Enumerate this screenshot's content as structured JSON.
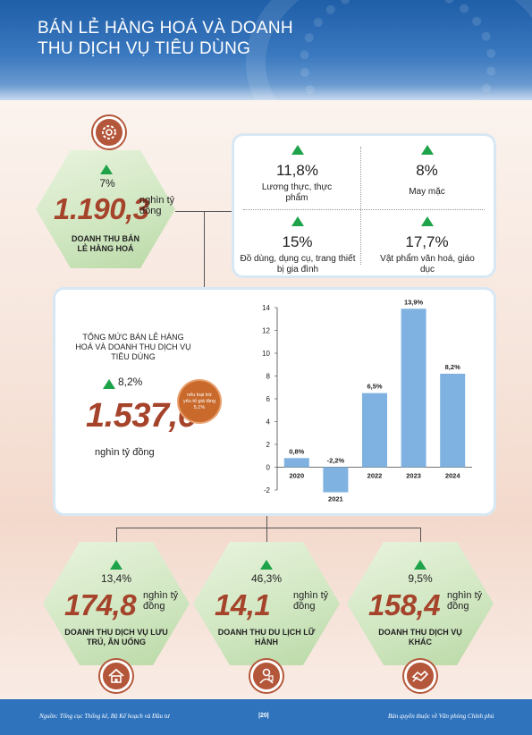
{
  "header": {
    "title": "BÁN LẺ HÀNG HOÁ VÀ DOANH THU DỊCH VỤ TIÊU DÙNG"
  },
  "retail": {
    "pct": "7%",
    "value": "1.190,3",
    "unit": "nghìn tỷ đồng",
    "label": "DOANH THU BÁN LẺ HÀNG HOÁ",
    "icon": "gear-icon"
  },
  "categories": [
    {
      "pct": "11,8%",
      "label": "Lương thực, thực phẩm"
    },
    {
      "pct": "8%",
      "label": "May mặc"
    },
    {
      "pct": "15%",
      "label": "Đồ dùng, dụng cụ, trang thiết bị gia đình"
    },
    {
      "pct": "17,7%",
      "label": "Vật phẩm văn hoá, giáo dục"
    }
  ],
  "total": {
    "title": "TỔNG MỨC BÁN LẺ HÀNG HOÁ VÀ DOANH THU DỊCH VỤ TIÊU DÙNG",
    "pct": "8,2%",
    "value": "1.537,6",
    "unit": "nghìn tỷ đồng",
    "note": "nếu loại trừ yếu tố giá tăng 5,1%"
  },
  "chart_data": {
    "type": "bar",
    "categories": [
      "2020",
      "2021",
      "2022",
      "2023",
      "2024"
    ],
    "values": [
      0.8,
      -2.2,
      6.5,
      13.9,
      8.2
    ],
    "data_labels": [
      "0,8%",
      "-2,2%",
      "6,5%",
      "13,9%",
      "8,2%"
    ],
    "yticks": [
      "14",
      "12",
      "10",
      "8",
      "6",
      "4",
      "2",
      "0",
      "-2"
    ],
    "ylim": [
      -2,
      14
    ],
    "bar_color": "#7fb2e0"
  },
  "services": [
    {
      "pct": "13,4%",
      "value": "174,8",
      "unit": "nghìn tỷ đồng",
      "label": "DOANH THU DỊCH VỤ LƯU TRÚ, ĂN UỐNG",
      "icon": "house-icon"
    },
    {
      "pct": "46,3%",
      "value": "14,1",
      "unit": "nghìn tỷ đồng",
      "label": "DOANH THU DU LỊCH LỮ HÀNH",
      "icon": "tourist-icon"
    },
    {
      "pct": "9,5%",
      "value": "158,4",
      "unit": "nghìn tỷ đồng",
      "label": "DOANH THU DỊCH VỤ KHÁC",
      "icon": "handshake-icon"
    }
  ],
  "footer": {
    "source": "Nguồn: Tổng cục Thống kê, Bộ Kế hoạch và Đầu tư",
    "page": "|20|",
    "copyright": "Bản quyền thuộc về Văn phòng Chính phủ"
  },
  "colors": {
    "accent": "#a5432b",
    "up": "#1ea34a",
    "header": "#2f73bd"
  }
}
